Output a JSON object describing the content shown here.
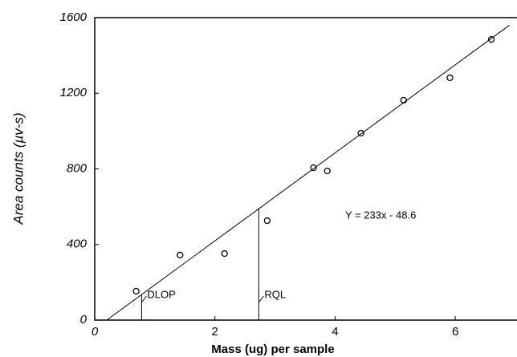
{
  "chart_data": {
    "type": "scatter",
    "x_label": "Mass (ug) per sample",
    "y_label": "Area counts (µv-s)",
    "annotation": "Y = 233x - 48.6",
    "x": [
      0.69,
      1.42,
      2.16,
      2.87,
      3.64,
      3.87,
      4.43,
      5.14,
      5.91,
      6.6
    ],
    "values": [
      153,
      344,
      352,
      526,
      806,
      789,
      989,
      1163,
      1282,
      1485
    ],
    "color": "#000000",
    "fit": {
      "x": [
        0.2,
        6.9
      ],
      "values": [
        0,
        1560
      ]
    },
    "markers": [
      {
        "label": "DLOP",
        "x": 0.78,
        "y": 133
      },
      {
        "label": "RQL",
        "x": 2.73,
        "y": 588
      }
    ],
    "xlim": [
      0,
      7
    ],
    "ylim": [
      0,
      1600
    ],
    "xticks": [
      0,
      2,
      4,
      6
    ],
    "yticks": [
      0,
      400,
      800,
      1200,
      1600
    ],
    "grid": false
  }
}
